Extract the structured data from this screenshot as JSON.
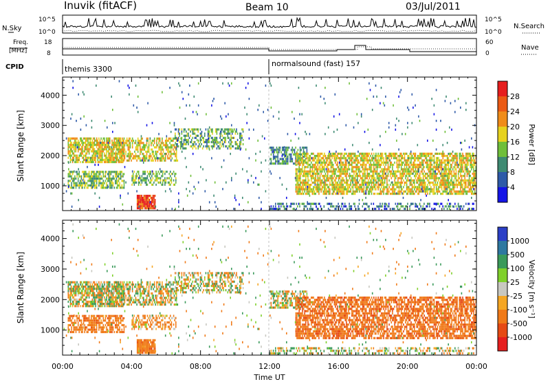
{
  "header": {
    "station": "Inuvik (fitACF)",
    "beam": "Beam 10",
    "date": "03/Jul/2011"
  },
  "strip_panels": {
    "nsky_label": "N.Sky",
    "nsky_ticks": [
      "10^5",
      "10^0"
    ],
    "nsearch_label": "N.Search",
    "nsearch_ticks": [
      "10^5",
      "10^0"
    ],
    "freq_label_line1": "Freq.",
    "freq_label_line2": "[MHz]",
    "freq_ticks": [
      "18",
      "8"
    ],
    "nave_label": "Nave",
    "nave_ticks": [
      "60",
      "0"
    ],
    "cpid_label": "CPID",
    "cpid_segments": [
      {
        "name": "themis 3300",
        "start_hour": 0,
        "end_hour": 12
      },
      {
        "name": "normalsound (fast) 157",
        "start_hour": 12,
        "end_hour": 24
      }
    ]
  },
  "axes": {
    "y_label": "Slant Range [km]",
    "y_ticks": [
      "1000",
      "2000",
      "3000",
      "4000"
    ],
    "x_label": "Time UT",
    "x_ticks": [
      "00:00",
      "04:00",
      "08:00",
      "12:00",
      "16:00",
      "20:00",
      "00:00"
    ]
  },
  "power_colorbar": {
    "label": "Power [dB]",
    "ticks": [
      "4",
      "8",
      "12",
      "16",
      "20",
      "24",
      "28"
    ],
    "colors": [
      "#1414e6",
      "#2e5aa8",
      "#3e8a72",
      "#6fbf3a",
      "#e6d21e",
      "#f08c19",
      "#eb5a14",
      "#e61e1e"
    ]
  },
  "velocity_colorbar": {
    "label": "Velocity [m s⁻¹]",
    "ticks": [
      "1000",
      "500",
      "100",
      "25",
      "-25",
      "-100",
      "-500",
      "-1000"
    ],
    "colors": [
      "#2b3fc6",
      "#2e78a0",
      "#3a9a5a",
      "#7fd02a",
      "#c8c8c0",
      "#f5a623",
      "#f07a18",
      "#e64a14",
      "#e61e1e"
    ]
  },
  "chart_data": {
    "type": "heatmap",
    "title": "Inuvik (fitACF)",
    "xlabel": "Time UT",
    "ylabel": "Slant Range [km]",
    "xlim_hours": [
      0,
      24
    ],
    "ylim_km": [
      180,
      4600
    ],
    "panels": [
      "Power [dB]",
      "Velocity [m s⁻¹]"
    ],
    "echo_regions": [
      {
        "t0": 0.3,
        "t1": 3.6,
        "r0": 1750,
        "r1": 2600,
        "density": 0.75,
        "power_db": 18,
        "velocity": 0
      },
      {
        "t0": 0.3,
        "t1": 3.6,
        "r0": 900,
        "r1": 1500,
        "density": 0.7,
        "power_db": 14,
        "velocity": -300
      },
      {
        "t0": 3.0,
        "t1": 6.7,
        "r0": 1800,
        "r1": 2600,
        "density": 0.55,
        "power_db": 18,
        "velocity": 0
      },
      {
        "t0": 4.3,
        "t1": 5.4,
        "r0": 220,
        "r1": 700,
        "density": 0.9,
        "power_db": 28,
        "velocity": -300
      },
      {
        "t0": 4.0,
        "t1": 6.6,
        "r0": 1000,
        "r1": 1500,
        "density": 0.5,
        "power_db": 14,
        "velocity": -200
      },
      {
        "t0": 6.5,
        "t1": 10.5,
        "r0": 2200,
        "r1": 2900,
        "density": 0.5,
        "power_db": 12,
        "velocity": 0
      },
      {
        "t0": 12.0,
        "t1": 14.2,
        "r0": 1700,
        "r1": 2300,
        "density": 0.6,
        "power_db": 10,
        "velocity": 0
      },
      {
        "t0": 13.5,
        "t1": 24.0,
        "r0": 700,
        "r1": 2100,
        "density": 0.7,
        "power_db": 18,
        "velocity": -400
      },
      {
        "t0": 12.0,
        "t1": 24.0,
        "r0": 200,
        "r1": 450,
        "density": 0.4,
        "power_db": 8,
        "velocity": 0
      },
      {
        "t0": 0.0,
        "t1": 24.0,
        "r0": 200,
        "r1": 4500,
        "density": 0.02,
        "power_db": 8,
        "velocity": 0
      }
    ]
  }
}
